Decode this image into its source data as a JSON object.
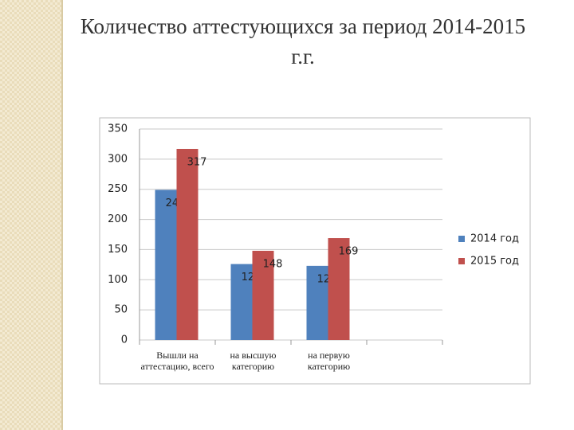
{
  "chart_data": {
    "type": "bar",
    "title": "Количество аттестующихся за период 2014-2015 г.г.",
    "categories": [
      "Вышли на аттестацию, всего",
      "на высшую категорию",
      "на первую категорию",
      null
    ],
    "series": [
      {
        "name": "2014 год",
        "color": "#4f81bd",
        "values": [
          249,
          126,
          123,
          null
        ]
      },
      {
        "name": "2015 год",
        "color": "#c0504d",
        "values": [
          317,
          148,
          169,
          null
        ]
      }
    ],
    "ylim": [
      0,
      350
    ],
    "yticks": [
      0,
      50,
      100,
      150,
      200,
      250,
      300,
      350
    ],
    "grid": true,
    "legend": "right"
  }
}
